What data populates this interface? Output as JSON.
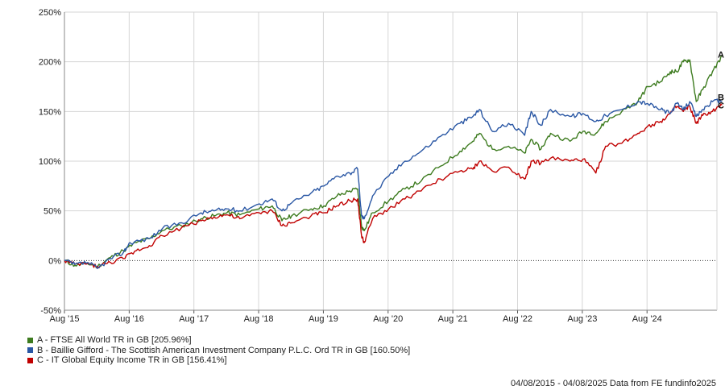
{
  "chart_data": {
    "type": "line",
    "x_range": [
      "2015-08-04",
      "2025-08-04"
    ],
    "y_unit": "%",
    "ylim": [
      -50,
      250
    ],
    "y_ticks": [
      "250%",
      "200%",
      "150%",
      "100%",
      "50%",
      "0%",
      "-50%"
    ],
    "y_tick_values": [
      250,
      200,
      150,
      100,
      50,
      0,
      -50
    ],
    "x_ticks": [
      "Aug '15",
      "Aug '16",
      "Aug '17",
      "Aug '18",
      "Aug '19",
      "Aug '20",
      "Aug '21",
      "Aug '22",
      "Aug '23",
      "Aug '24"
    ],
    "x_tick_years": [
      2015.59,
      2016.59,
      2017.59,
      2018.59,
      2019.59,
      2020.59,
      2021.59,
      2022.59,
      2023.59,
      2024.59
    ],
    "grid": true,
    "zero_line": "dotted",
    "series": [
      {
        "name": "A - FTSE All World TR in GB [205.96%]",
        "end_label": "A",
        "color": "#3d7b1f",
        "points": [
          [
            2015.59,
            0
          ],
          [
            2015.75,
            -5
          ],
          [
            2015.95,
            -3
          ],
          [
            2016.1,
            -6
          ],
          [
            2016.3,
            3
          ],
          [
            2016.5,
            10
          ],
          [
            2016.7,
            18
          ],
          [
            2016.9,
            22
          ],
          [
            2017.1,
            30
          ],
          [
            2017.4,
            35
          ],
          [
            2017.7,
            42
          ],
          [
            2017.9,
            45
          ],
          [
            2018.1,
            48
          ],
          [
            2018.3,
            46
          ],
          [
            2018.6,
            52
          ],
          [
            2018.8,
            55
          ],
          [
            2018.95,
            40
          ],
          [
            2019.1,
            45
          ],
          [
            2019.4,
            52
          ],
          [
            2019.6,
            55
          ],
          [
            2019.8,
            65
          ],
          [
            2020.0,
            70
          ],
          [
            2020.12,
            72
          ],
          [
            2020.18,
            35
          ],
          [
            2020.22,
            30
          ],
          [
            2020.35,
            48
          ],
          [
            2020.6,
            60
          ],
          [
            2020.85,
            72
          ],
          [
            2021.1,
            80
          ],
          [
            2021.4,
            95
          ],
          [
            2021.7,
            110
          ],
          [
            2021.9,
            120
          ],
          [
            2022.0,
            128
          ],
          [
            2022.2,
            112
          ],
          [
            2022.45,
            115
          ],
          [
            2022.7,
            108
          ],
          [
            2022.8,
            122
          ],
          [
            2022.95,
            112
          ],
          [
            2023.1,
            128
          ],
          [
            2023.4,
            120
          ],
          [
            2023.6,
            130
          ],
          [
            2023.8,
            128
          ],
          [
            2023.95,
            140
          ],
          [
            2024.2,
            150
          ],
          [
            2024.45,
            160
          ],
          [
            2024.6,
            175
          ],
          [
            2024.8,
            180
          ],
          [
            2024.95,
            190
          ],
          [
            2025.05,
            190
          ],
          [
            2025.15,
            200
          ],
          [
            2025.25,
            202
          ],
          [
            2025.35,
            160
          ],
          [
            2025.45,
            172
          ],
          [
            2025.6,
            190
          ],
          [
            2025.75,
            206
          ]
        ]
      },
      {
        "name": "B - Baillie Gifford - The Scottish American Investment Company P.L.C. Ord TR in GB [160.50%]",
        "end_label": "B",
        "color": "#2a57a4",
        "points": [
          [
            2015.59,
            0
          ],
          [
            2015.75,
            -4
          ],
          [
            2015.95,
            -2
          ],
          [
            2016.1,
            -8
          ],
          [
            2016.3,
            2
          ],
          [
            2016.5,
            8
          ],
          [
            2016.6,
            18
          ],
          [
            2016.9,
            22
          ],
          [
            2017.1,
            32
          ],
          [
            2017.4,
            38
          ],
          [
            2017.7,
            48
          ],
          [
            2017.9,
            50
          ],
          [
            2018.1,
            52
          ],
          [
            2018.3,
            50
          ],
          [
            2018.6,
            57
          ],
          [
            2018.8,
            62
          ],
          [
            2018.95,
            50
          ],
          [
            2019.1,
            58
          ],
          [
            2019.4,
            68
          ],
          [
            2019.6,
            75
          ],
          [
            2019.8,
            85
          ],
          [
            2020.0,
            88
          ],
          [
            2020.12,
            92
          ],
          [
            2020.18,
            45
          ],
          [
            2020.22,
            42
          ],
          [
            2020.35,
            65
          ],
          [
            2020.6,
            85
          ],
          [
            2020.85,
            100
          ],
          [
            2021.1,
            110
          ],
          [
            2021.4,
            125
          ],
          [
            2021.7,
            138
          ],
          [
            2021.9,
            145
          ],
          [
            2022.0,
            152
          ],
          [
            2022.2,
            130
          ],
          [
            2022.45,
            138
          ],
          [
            2022.7,
            126
          ],
          [
            2022.8,
            150
          ],
          [
            2022.95,
            136
          ],
          [
            2023.1,
            152
          ],
          [
            2023.4,
            145
          ],
          [
            2023.6,
            148
          ],
          [
            2023.8,
            140
          ],
          [
            2023.95,
            146
          ],
          [
            2024.2,
            152
          ],
          [
            2024.45,
            160
          ],
          [
            2024.6,
            158
          ],
          [
            2024.8,
            152
          ],
          [
            2024.95,
            148
          ],
          [
            2025.05,
            158
          ],
          [
            2025.15,
            152
          ],
          [
            2025.25,
            160
          ],
          [
            2025.35,
            145
          ],
          [
            2025.45,
            152
          ],
          [
            2025.6,
            160
          ],
          [
            2025.75,
            160.5
          ]
        ]
      },
      {
        "name": "C - IT Global Equity Income TR in GB [156.41%]",
        "end_label": "C",
        "color": "#c00000",
        "points": [
          [
            2015.59,
            0
          ],
          [
            2015.75,
            -4
          ],
          [
            2015.95,
            -3
          ],
          [
            2016.1,
            -6
          ],
          [
            2016.3,
            -2
          ],
          [
            2016.5,
            2
          ],
          [
            2016.7,
            10
          ],
          [
            2016.9,
            15
          ],
          [
            2017.1,
            25
          ],
          [
            2017.4,
            33
          ],
          [
            2017.7,
            40
          ],
          [
            2017.9,
            44
          ],
          [
            2018.1,
            46
          ],
          [
            2018.3,
            42
          ],
          [
            2018.6,
            48
          ],
          [
            2018.8,
            50
          ],
          [
            2018.95,
            35
          ],
          [
            2019.1,
            38
          ],
          [
            2019.4,
            45
          ],
          [
            2019.6,
            48
          ],
          [
            2019.8,
            55
          ],
          [
            2020.0,
            60
          ],
          [
            2020.12,
            62
          ],
          [
            2020.18,
            25
          ],
          [
            2020.22,
            18
          ],
          [
            2020.35,
            42
          ],
          [
            2020.6,
            52
          ],
          [
            2020.85,
            62
          ],
          [
            2021.1,
            70
          ],
          [
            2021.4,
            82
          ],
          [
            2021.7,
            90
          ],
          [
            2021.9,
            92
          ],
          [
            2022.0,
            100
          ],
          [
            2022.2,
            90
          ],
          [
            2022.45,
            94
          ],
          [
            2022.7,
            82
          ],
          [
            2022.8,
            100
          ],
          [
            2022.95,
            98
          ],
          [
            2023.1,
            103
          ],
          [
            2023.4,
            100
          ],
          [
            2023.6,
            102
          ],
          [
            2023.8,
            88
          ],
          [
            2023.95,
            115
          ],
          [
            2024.2,
            118
          ],
          [
            2024.45,
            128
          ],
          [
            2024.6,
            135
          ],
          [
            2024.8,
            140
          ],
          [
            2024.95,
            148
          ],
          [
            2025.05,
            155
          ],
          [
            2025.15,
            150
          ],
          [
            2025.25,
            155
          ],
          [
            2025.35,
            138
          ],
          [
            2025.45,
            146
          ],
          [
            2025.6,
            150
          ],
          [
            2025.75,
            156.4
          ]
        ]
      }
    ]
  },
  "legend": {
    "items": [
      {
        "label": "A - FTSE All World TR in GB [205.96%]",
        "color": "#3d7b1f"
      },
      {
        "label": "B - Baillie Gifford - The Scottish American Investment Company P.L.C. Ord TR in GB [160.50%]",
        "color": "#2a57a4"
      },
      {
        "label": "C - IT Global Equity Income TR in GB [156.41%]",
        "color": "#c00000"
      }
    ]
  },
  "footer": {
    "text": "04/08/2015 - 04/08/2025 Data from FE fundinfo2025"
  }
}
